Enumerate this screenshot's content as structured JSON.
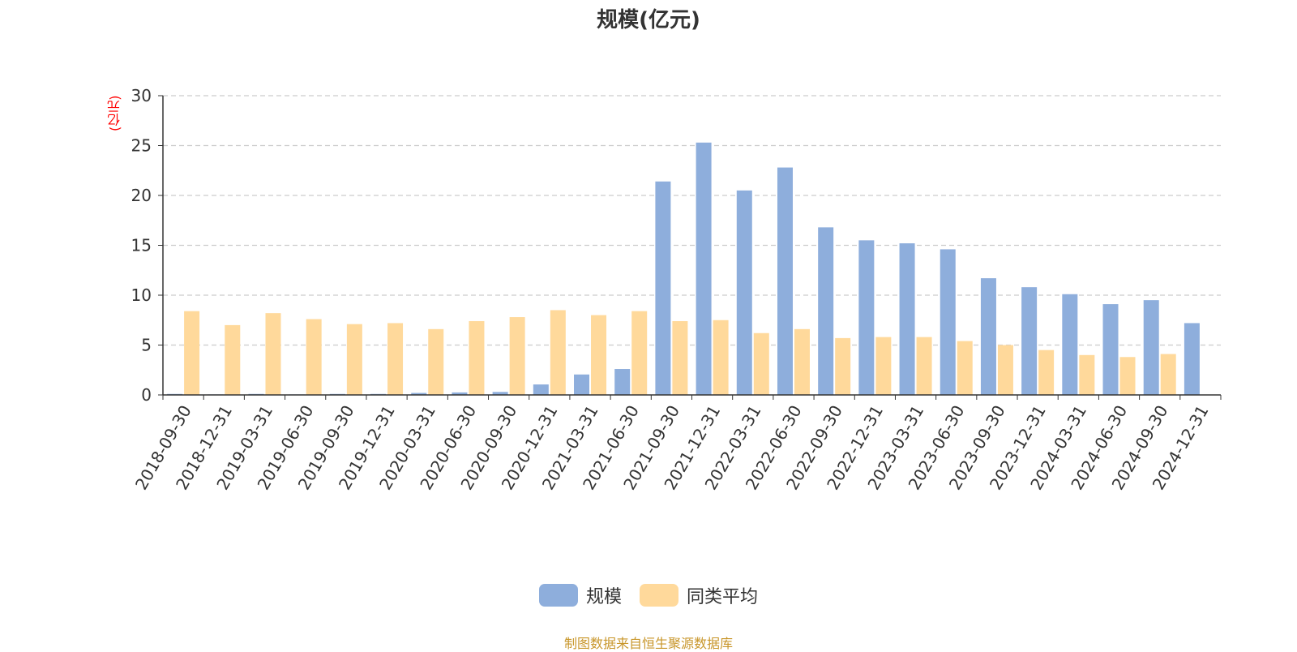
{
  "colors": {
    "scale": "#8eaedc",
    "avg": "#ffd99b",
    "axis": "#333333",
    "grid": "#cccccc",
    "ylabel": "#ff0000",
    "source": "#c8962a"
  },
  "chart_data": {
    "type": "bar",
    "title": "规模(亿元)",
    "ylabel": "(亿元)",
    "ylim": [
      0,
      30
    ],
    "yticks": [
      0,
      5,
      10,
      15,
      20,
      25,
      30
    ],
    "grid": true,
    "legend_position": "bottom",
    "categories": [
      "2018-09-30",
      "2018-12-31",
      "2019-03-31",
      "2019-06-30",
      "2019-09-30",
      "2019-12-31",
      "2020-03-31",
      "2020-06-30",
      "2020-09-30",
      "2020-12-31",
      "2021-03-31",
      "2021-06-30",
      "2021-09-30",
      "2021-12-31",
      "2022-03-31",
      "2022-06-30",
      "2022-09-30",
      "2022-12-31",
      "2023-03-31",
      "2023-06-30",
      "2023-09-30",
      "2023-12-31",
      "2024-03-31",
      "2024-06-30",
      "2024-09-30",
      "2024-12-31"
    ],
    "series": [
      {
        "name": "规模",
        "values": [
          0.1,
          0.05,
          0.1,
          0.05,
          0.1,
          0.1,
          0.2,
          0.25,
          0.3,
          1.05,
          2.05,
          2.6,
          21.4,
          25.3,
          20.5,
          22.8,
          16.8,
          15.5,
          15.2,
          14.6,
          11.7,
          10.8,
          10.1,
          9.1,
          9.5,
          7.2
        ]
      },
      {
        "name": "同类平均",
        "values": [
          8.4,
          7.0,
          8.2,
          7.6,
          7.1,
          7.2,
          6.6,
          7.4,
          7.8,
          8.5,
          8.0,
          8.4,
          7.4,
          7.5,
          6.2,
          6.6,
          5.7,
          5.8,
          5.8,
          5.4,
          5.0,
          4.5,
          4.0,
          3.8,
          4.1,
          null
        ]
      }
    ]
  },
  "footer": {
    "source": "制图数据来自恒生聚源数据库"
  }
}
